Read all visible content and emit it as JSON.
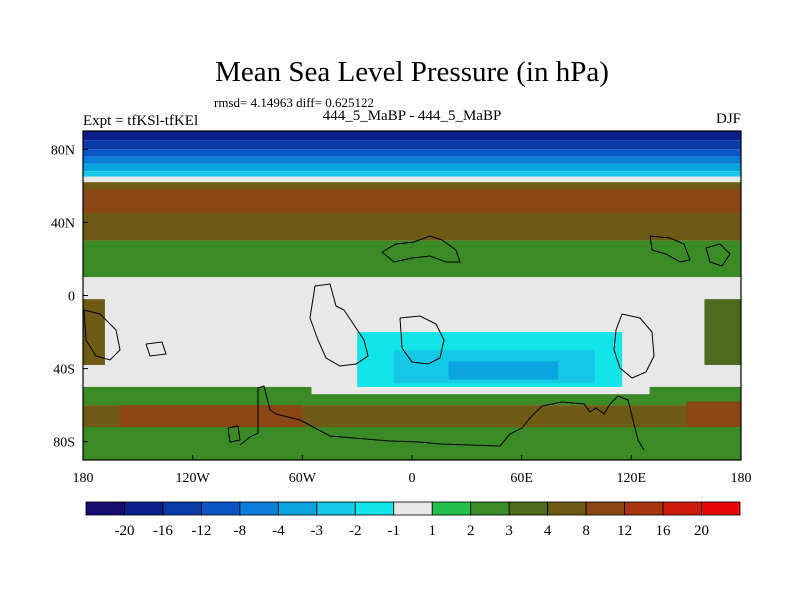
{
  "chart_data": {
    "type": "heatmap",
    "title": "Mean Sea Level Pressure (in hPa)",
    "stats": "rmsd= 4.14963 diff= 0.625122",
    "left_label": "Expt = tfKSl-tfKEl",
    "center_label": "444_5_MaBP - 444_5_MaBP",
    "right_label": "DJF",
    "x_ticks": [
      {
        "value": -180,
        "label": "180"
      },
      {
        "value": -120,
        "label": "120W"
      },
      {
        "value": -60,
        "label": "60W"
      },
      {
        "value": 0,
        "label": "0"
      },
      {
        "value": 60,
        "label": "60E"
      },
      {
        "value": 120,
        "label": "120E"
      },
      {
        "value": 180,
        "label": "180"
      }
    ],
    "y_ticks": [
      {
        "value": 80,
        "label": "80N"
      },
      {
        "value": 40,
        "label": "40N"
      },
      {
        "value": 0,
        "label": "0"
      },
      {
        "value": -40,
        "label": "40S"
      },
      {
        "value": -80,
        "label": "80S"
      }
    ],
    "xlim": [
      -180,
      180
    ],
    "ylim": [
      -90,
      90
    ],
    "colorbar": {
      "levels": [
        -20,
        -16,
        -12,
        -8,
        -4,
        -3,
        -2,
        -1,
        1,
        2,
        3,
        4,
        8,
        12,
        16,
        20
      ],
      "labels": [
        "-20",
        "-16",
        "-12",
        "-8",
        "-4",
        "-3",
        "-2",
        "-1",
        "1",
        "2",
        "3",
        "4",
        "8",
        "12",
        "16",
        "20"
      ],
      "colors": [
        "#160d6e",
        "#0a1f8c",
        "#0a3aa8",
        "#0a56c4",
        "#0a7ed8",
        "#0aa4e0",
        "#14c8e6",
        "#12e4e8",
        "#e8e8e8",
        "#22c04a",
        "#3a8a26",
        "#4e6a1c",
        "#6e5a14",
        "#8a4614",
        "#a8340e",
        "#cc1a0a",
        "#e80808"
      ]
    },
    "fields": [
      {
        "lat": [
          90,
          85
        ],
        "lon": [
          -180,
          180
        ],
        "value": -20
      },
      {
        "lat": [
          85,
          80
        ],
        "lon": [
          -180,
          180
        ],
        "value": -16
      },
      {
        "lat": [
          80,
          76
        ],
        "lon": [
          -180,
          180
        ],
        "value": -12
      },
      {
        "lat": [
          76,
          72
        ],
        "lon": [
          -180,
          180
        ],
        "value": -8
      },
      {
        "lat": [
          72,
          68
        ],
        "lon": [
          -180,
          180
        ],
        "value": -4
      },
      {
        "lat": [
          68,
          65
        ],
        "lon": [
          -180,
          180
        ],
        "value": -3
      },
      {
        "lat": [
          65,
          62
        ],
        "lon": [
          -180,
          180
        ],
        "value": -1
      },
      {
        "lat": [
          62,
          58
        ],
        "lon": [
          -180,
          180
        ],
        "value": 4
      },
      {
        "lat": [
          58,
          30
        ],
        "lon": [
          -180,
          180
        ],
        "value": 4
      },
      {
        "lat": [
          30,
          10
        ],
        "lon": [
          -180,
          180
        ],
        "value": 2
      },
      {
        "lat": [
          10,
          -50
        ],
        "lon": [
          -180,
          180
        ],
        "value": 0
      },
      {
        "lat": [
          -50,
          -60
        ],
        "lon": [
          -180,
          180
        ],
        "value": 2
      },
      {
        "lat": [
          -60,
          -90
        ],
        "lon": [
          -180,
          180
        ],
        "value": 4
      },
      {
        "lat": [
          -60,
          -72
        ],
        "lon": [
          -160,
          -60
        ],
        "value": 8
      },
      {
        "lat": [
          -58,
          -75
        ],
        "lon": [
          150,
          180
        ],
        "value": 8
      },
      {
        "lat": [
          -72,
          -90
        ],
        "lon": [
          -180,
          180
        ],
        "value": 2
      },
      {
        "lat": [
          45,
          58
        ],
        "lon": [
          -180,
          180
        ],
        "value": 8
      },
      {
        "lat": [
          -2,
          -38
        ],
        "lon": [
          -180,
          -168
        ],
        "value": 4
      },
      {
        "lat": [
          -2,
          -38
        ],
        "lon": [
          160,
          180
        ],
        "value": 3
      },
      {
        "lat": [
          -14,
          -54
        ],
        "lon": [
          -55,
          130
        ],
        "value": -1
      },
      {
        "lat": [
          -20,
          -50
        ],
        "lon": [
          -30,
          115
        ],
        "value": -2
      },
      {
        "lat": [
          -30,
          -48
        ],
        "lon": [
          -10,
          100
        ],
        "value": -3
      },
      {
        "lat": [
          -36,
          -46
        ],
        "lon": [
          20,
          80
        ],
        "value": -4
      }
    ]
  }
}
